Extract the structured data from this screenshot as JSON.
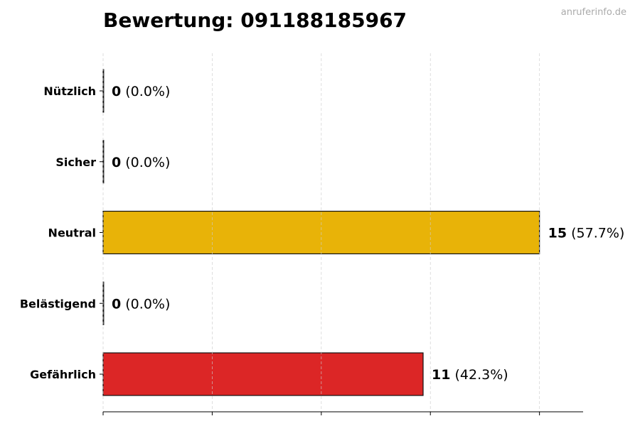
{
  "title": "Bewertung: 091188185967",
  "watermark": "anruferinfo.de",
  "chart_data": {
    "type": "bar",
    "orientation": "horizontal",
    "title": "Bewertung: 091188185967",
    "categories": [
      "Nützlich",
      "Sicher",
      "Neutral",
      "Belästigend",
      "Gefährlich"
    ],
    "values": [
      0,
      0,
      15,
      0,
      11
    ],
    "percent_labels": [
      "(0.0%)",
      "(0.0%)",
      "(57.7%)",
      "(0.0%)",
      "(42.3%)"
    ],
    "colors": [
      "#22a34a",
      "#3b82f6",
      "#e8b308",
      "#f97316",
      "#dc2626"
    ],
    "xlim": [
      0,
      16.5
    ],
    "xticks": [
      0,
      3.75,
      7.5,
      11.25,
      15
    ],
    "xtick_labels_shown": false,
    "grid": "vertical dashed",
    "xlabel": "",
    "ylabel": ""
  }
}
